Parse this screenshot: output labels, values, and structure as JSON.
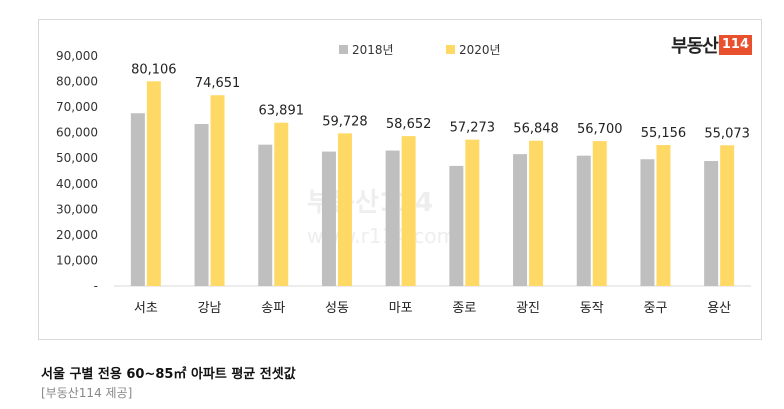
{
  "logo": {
    "text": "부동산",
    "box": "114"
  },
  "watermark": {
    "text": "부동산114",
    "url": "www.r114.com"
  },
  "chart_data": {
    "type": "bar",
    "categories": [
      "서초",
      "강남",
      "송파",
      "성동",
      "마포",
      "종로",
      "광진",
      "동작",
      "중구",
      "용산"
    ],
    "series": [
      {
        "name": "2018년",
        "color": "#bfbfbf",
        "values": [
          67600,
          63400,
          55300,
          52600,
          53000,
          47000,
          51600,
          51000,
          49600,
          48900
        ]
      },
      {
        "name": "2020년",
        "color": "#ffd966",
        "values": [
          80106,
          74651,
          63891,
          59728,
          58652,
          57273,
          56848,
          56700,
          55156,
          55073
        ],
        "labels": [
          "80,106",
          "74,651",
          "63,891",
          "59,728",
          "58,652",
          "57,273",
          "56,848",
          "56,700",
          "55,156",
          "55,073"
        ]
      }
    ],
    "y_ticks": [
      "-",
      "10,000",
      "20,000",
      "30,000",
      "40,000",
      "50,000",
      "60,000",
      "70,000",
      "80,000",
      "90,000"
    ],
    "ylim": [
      0,
      90000
    ],
    "legend_position": "top",
    "grid": false
  },
  "caption": {
    "title": "서울 구별 전용 60~85㎡ 아파트 평균 전셋값",
    "source": "[부동산114 제공]"
  }
}
